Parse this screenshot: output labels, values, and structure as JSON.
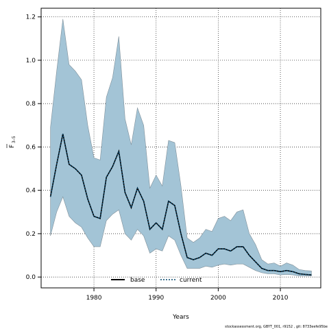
{
  "chart_data": {
    "type": "area",
    "xlabel": "Years",
    "ylabel_main": "F",
    "ylabel_sub": "3–5",
    "xlim": [
      1971.5,
      2016.5
    ],
    "ylim": [
      -0.05,
      1.24
    ],
    "xticks": [
      1980,
      1990,
      2000,
      2010
    ],
    "yticks": [
      0.0,
      0.2,
      0.4,
      0.6,
      0.8,
      1.0,
      1.2
    ],
    "grid": true,
    "legend_position": "bottom-center",
    "x": [
      1973,
      1974,
      1975,
      1976,
      1977,
      1978,
      1979,
      1980,
      1981,
      1982,
      1983,
      1984,
      1985,
      1986,
      1987,
      1988,
      1989,
      1990,
      1991,
      1992,
      1993,
      1994,
      1995,
      1996,
      1997,
      1998,
      1999,
      2000,
      2001,
      2002,
      2003,
      2004,
      2005,
      2006,
      2007,
      2008,
      2009,
      2010,
      2011,
      2012,
      2013,
      2014,
      2015
    ],
    "band_upper": [
      0.69,
      0.95,
      1.19,
      0.98,
      0.95,
      0.91,
      0.7,
      0.55,
      0.54,
      0.83,
      0.92,
      1.11,
      0.73,
      0.61,
      0.78,
      0.7,
      0.41,
      0.47,
      0.42,
      0.63,
      0.62,
      0.42,
      0.18,
      0.16,
      0.18,
      0.22,
      0.21,
      0.27,
      0.28,
      0.26,
      0.3,
      0.31,
      0.2,
      0.15,
      0.08,
      0.06,
      0.065,
      0.05,
      0.065,
      0.055,
      0.035,
      0.03,
      0.028
    ],
    "band_lower": [
      0.19,
      0.3,
      0.37,
      0.28,
      0.25,
      0.23,
      0.18,
      0.14,
      0.14,
      0.26,
      0.29,
      0.31,
      0.2,
      0.17,
      0.22,
      0.19,
      0.11,
      0.13,
      0.12,
      0.19,
      0.17,
      0.1,
      0.04,
      0.04,
      0.04,
      0.05,
      0.045,
      0.055,
      0.06,
      0.055,
      0.06,
      0.06,
      0.045,
      0.03,
      0.02,
      0.015,
      0.015,
      0.01,
      0.012,
      0.01,
      0.005,
      0.005,
      0.005
    ],
    "series": [
      {
        "name": "base",
        "style": "solid",
        "values": [
          0.37,
          0.52,
          0.66,
          0.52,
          0.5,
          0.47,
          0.36,
          0.28,
          0.27,
          0.46,
          0.51,
          0.58,
          0.39,
          0.32,
          0.41,
          0.35,
          0.22,
          0.25,
          0.22,
          0.35,
          0.33,
          0.2,
          0.09,
          0.08,
          0.09,
          0.11,
          0.1,
          0.13,
          0.13,
          0.12,
          0.14,
          0.14,
          0.1,
          0.07,
          0.04,
          0.03,
          0.03,
          0.025,
          0.03,
          0.025,
          0.015,
          0.012,
          0.01
        ]
      },
      {
        "name": "current",
        "style": "dotted",
        "values": [
          0.37,
          0.52,
          0.66,
          0.52,
          0.5,
          0.47,
          0.36,
          0.28,
          0.27,
          0.46,
          0.51,
          0.58,
          0.39,
          0.32,
          0.41,
          0.35,
          0.22,
          0.25,
          0.22,
          0.35,
          0.33,
          0.2,
          0.09,
          0.08,
          0.09,
          0.11,
          0.1,
          0.13,
          0.13,
          0.12,
          0.14,
          0.14,
          0.1,
          0.07,
          0.04,
          0.03,
          0.03,
          0.025,
          0.03,
          0.025,
          0.015,
          0.012,
          0.01
        ]
      }
    ],
    "colors": {
      "band_fill": "#a3c4d6",
      "band_edge": "#7f8f99",
      "base_line": "#000000",
      "current_line": "#00436a",
      "grid": "#333333"
    },
    "footer_text": "stockassessment.org, GBYT_001, r9152 , git: 8733eefe95be"
  }
}
